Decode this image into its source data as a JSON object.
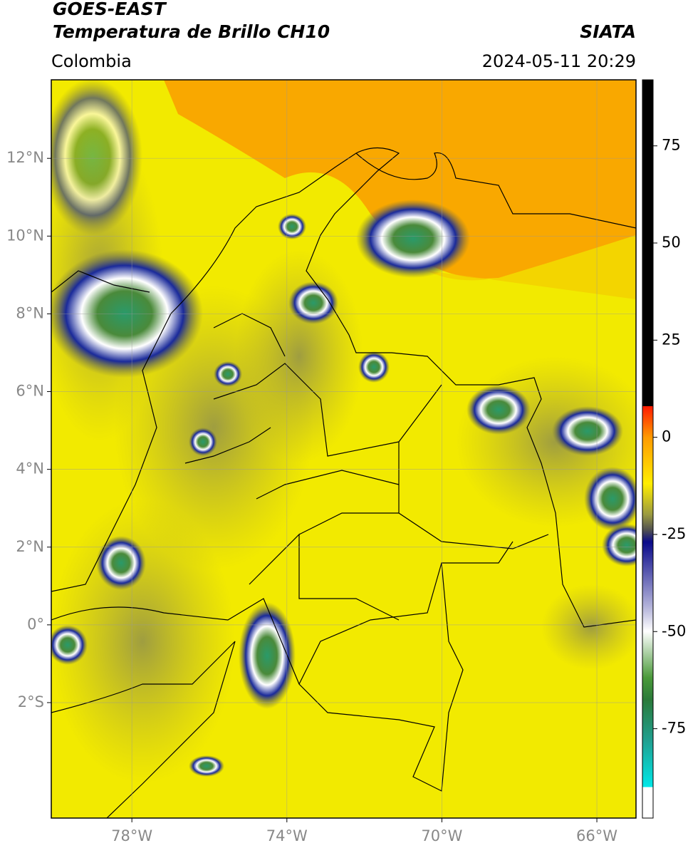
{
  "header": {
    "title": "GOES-EAST",
    "subtitle": "Temperatura de Brillo CH10",
    "brand": "SIATA",
    "region": "Colombia",
    "datetime": "2024-05-11 20:29"
  },
  "map": {
    "xlim": [
      -80.08,
      -64.99
    ],
    "ylim": [
      -4.97,
      14.02
    ],
    "grid": true,
    "xticks": [
      {
        "value": -78,
        "label": "78°W"
      },
      {
        "value": -74,
        "label": "74°W"
      },
      {
        "value": -70,
        "label": "70°W"
      },
      {
        "value": -66,
        "label": "66°W"
      }
    ],
    "yticks": [
      {
        "value": 12,
        "label": "12°N"
      },
      {
        "value": 10,
        "label": "10°N"
      },
      {
        "value": 8,
        "label": "8°N"
      },
      {
        "value": 6,
        "label": "6°N"
      },
      {
        "value": 4,
        "label": "4°N"
      },
      {
        "value": 2,
        "label": "2°N"
      },
      {
        "value": 0,
        "label": "0°"
      },
      {
        "value": -2,
        "label": "2°S"
      }
    ]
  },
  "colorbar": {
    "lim": [
      -98,
      92
    ],
    "ticks": [
      75,
      50,
      25,
      0,
      -25,
      -50,
      -75
    ]
  }
}
